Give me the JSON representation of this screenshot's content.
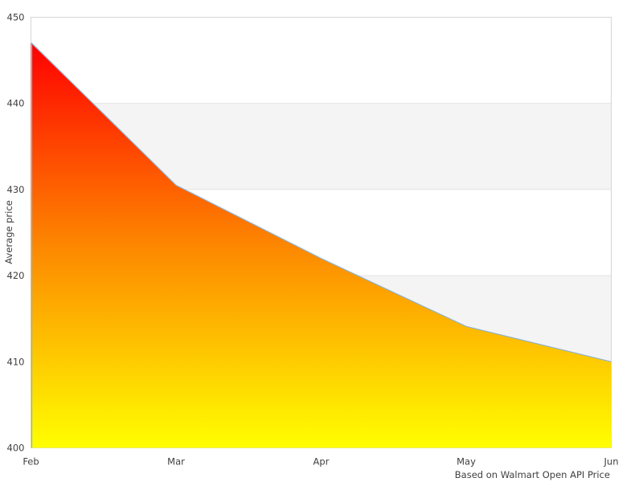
{
  "page": {
    "background": "#ffffff"
  },
  "chart_data": {
    "type": "area",
    "title": "",
    "xlabel": "",
    "ylabel": "Average price",
    "caption": "Based on Walmart Open API Price",
    "categories": [
      "Feb",
      "Mar",
      "Apr",
      "May",
      "Jun"
    ],
    "series": [
      {
        "name": "Average price",
        "values": [
          447,
          430.5,
          422,
          414.1,
          410
        ]
      }
    ],
    "ylim": [
      400,
      450
    ],
    "y_ticks": [
      450,
      440,
      430,
      420,
      410,
      400
    ],
    "grid": "horizontal-bands-alternating",
    "legend": "none",
    "colors": {
      "gradient_top": "#ff0000",
      "gradient_mid": "#fd8700",
      "gradient_bottom": "#ffff00",
      "line": "#8db3d1",
      "band_base": "#ffffff",
      "band_alt": "#f4f4f4",
      "gridline": "#e2e2e2",
      "border": "#d6d6d6",
      "text": "#404040"
    }
  }
}
